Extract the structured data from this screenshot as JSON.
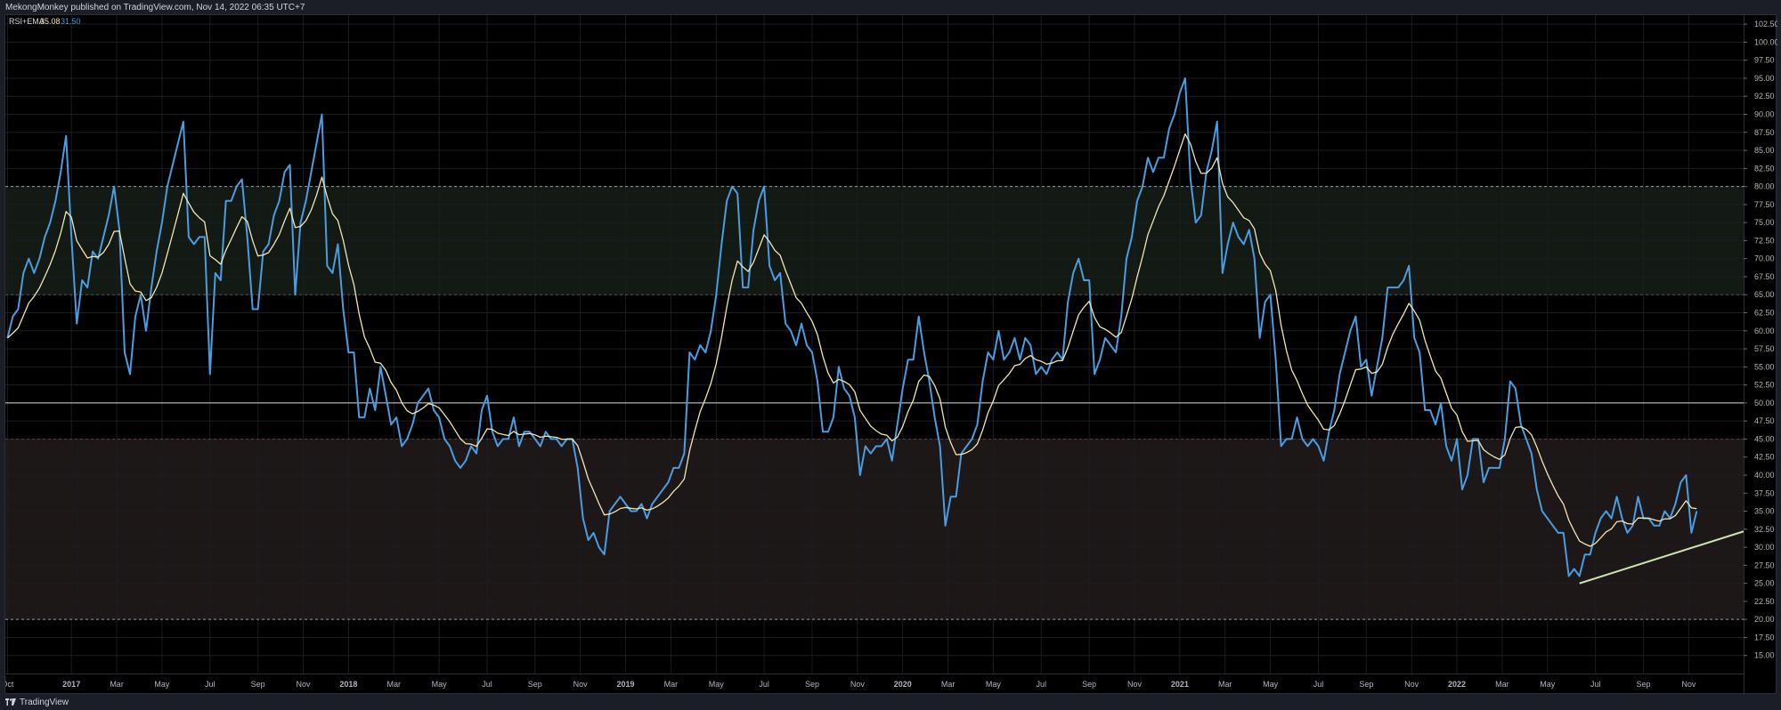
{
  "header": {
    "published": "MekongMonkey published on TradingView.com, Nov 14, 2022 06:35 UTC+7"
  },
  "legend": {
    "name": "RSI+EMA",
    "rsi_value": "35.08",
    "ema_value": "31.50"
  },
  "footer": {
    "brand": "TradingView"
  },
  "colors": {
    "background": "#000000",
    "rsi_line": "#4a9de0",
    "ema_line": "#f2e6b5",
    "overbought_band": "#131a13",
    "oversold_band": "#1d1717",
    "trendline": "#c8e6b0",
    "axis_text": "#b2b5be"
  },
  "chart_data": {
    "type": "line",
    "ylim": [
      12.5,
      103.75
    ],
    "y_ticks": [
      "15.00",
      "17.50",
      "20.00",
      "22.50",
      "25.00",
      "27.50",
      "30.00",
      "32.50",
      "35.00",
      "37.50",
      "40.00",
      "42.50",
      "45.00",
      "47.50",
      "50.00",
      "52.50",
      "55.00",
      "57.50",
      "60.00",
      "62.50",
      "65.00",
      "67.50",
      "70.00",
      "72.50",
      "75.00",
      "77.50",
      "80.00",
      "82.50",
      "85.00",
      "87.50",
      "90.00",
      "92.50",
      "95.00",
      "97.50",
      "100.00",
      "102.50"
    ],
    "x_ticks": [
      {
        "label": "Oct",
        "week": -12
      },
      {
        "label": "2017",
        "week": 0
      },
      {
        "label": "Mar",
        "week": 8.5
      },
      {
        "label": "May",
        "week": 17
      },
      {
        "label": "Jul",
        "week": 26
      },
      {
        "label": "Sep",
        "week": 35
      },
      {
        "label": "Nov",
        "week": 43.5
      },
      {
        "label": "2018",
        "week": 52
      },
      {
        "label": "Mar",
        "week": 60.5
      },
      {
        "label": "May",
        "week": 69
      },
      {
        "label": "Jul",
        "week": 78
      },
      {
        "label": "Sep",
        "week": 87
      },
      {
        "label": "Nov",
        "week": 95.5
      },
      {
        "label": "2019",
        "week": 104
      },
      {
        "label": "Mar",
        "week": 112.5
      },
      {
        "label": "May",
        "week": 121
      },
      {
        "label": "Jul",
        "week": 130
      },
      {
        "label": "Sep",
        "week": 139
      },
      {
        "label": "Nov",
        "week": 147.5
      },
      {
        "label": "2020",
        "week": 156
      },
      {
        "label": "Mar",
        "week": 164.5
      },
      {
        "label": "May",
        "week": 173
      },
      {
        "label": "Jul",
        "week": 182
      },
      {
        "label": "Sep",
        "week": 191
      },
      {
        "label": "Nov",
        "week": 199.5
      },
      {
        "label": "2021",
        "week": 208
      },
      {
        "label": "Mar",
        "week": 216.5
      },
      {
        "label": "May",
        "week": 225
      },
      {
        "label": "Jul",
        "week": 234
      },
      {
        "label": "Sep",
        "week": 243
      },
      {
        "label": "Nov",
        "week": 251.5
      },
      {
        "label": "2022",
        "week": 260
      },
      {
        "label": "Mar",
        "week": 268.5
      },
      {
        "label": "May",
        "week": 277
      },
      {
        "label": "Jul",
        "week": 286
      },
      {
        "label": "Sep",
        "week": 295
      },
      {
        "label": "Nov",
        "week": 303.5
      }
    ],
    "x_range": [
      -12.4,
      313.8
    ],
    "bands": [
      {
        "from": 65,
        "to": 80
      },
      {
        "from": 20,
        "to": 45
      }
    ],
    "levels": [
      {
        "value": 80,
        "style": "dashed"
      },
      {
        "value": 65,
        "style": "dashed"
      },
      {
        "value": 50,
        "style": "solid"
      },
      {
        "value": 45,
        "style": "dashed"
      },
      {
        "value": 20,
        "style": "dashed"
      }
    ],
    "rsi_keypoints": [
      [
        -12,
        59
      ],
      [
        -11,
        62
      ],
      [
        -10,
        63
      ],
      [
        -9,
        68
      ],
      [
        -8,
        70
      ],
      [
        -7,
        68
      ],
      [
        -6,
        70
      ],
      [
        -5,
        73
      ],
      [
        -4,
        75
      ],
      [
        -3,
        78
      ],
      [
        -2,
        82
      ],
      [
        -1,
        87
      ],
      [
        0,
        73
      ],
      [
        1,
        61
      ],
      [
        2,
        67
      ],
      [
        3,
        66
      ],
      [
        4,
        71
      ],
      [
        5,
        70
      ],
      [
        6,
        73
      ],
      [
        7,
        76
      ],
      [
        8,
        80
      ],
      [
        9,
        74
      ],
      [
        10,
        57
      ],
      [
        11,
        54
      ],
      [
        12,
        62
      ],
      [
        13,
        65
      ],
      [
        14,
        60
      ],
      [
        15,
        66
      ],
      [
        16,
        71
      ],
      [
        17,
        75
      ],
      [
        18,
        80
      ],
      [
        19,
        83
      ],
      [
        20,
        86
      ],
      [
        21,
        89
      ],
      [
        22,
        73
      ],
      [
        23,
        72
      ],
      [
        24,
        73
      ],
      [
        25,
        73
      ],
      [
        26,
        54
      ],
      [
        27,
        68
      ],
      [
        28,
        67
      ],
      [
        29,
        78
      ],
      [
        30,
        78
      ],
      [
        31,
        80
      ],
      [
        32,
        81
      ],
      [
        33,
        73
      ],
      [
        34,
        63
      ],
      [
        35,
        63
      ],
      [
        36,
        71
      ],
      [
        37,
        72
      ],
      [
        38,
        76
      ],
      [
        39,
        78
      ],
      [
        40,
        82
      ],
      [
        41,
        83
      ],
      [
        42,
        65
      ],
      [
        43,
        75
      ],
      [
        44,
        78
      ],
      [
        45,
        82
      ],
      [
        46,
        86
      ],
      [
        47,
        90
      ],
      [
        48,
        69
      ],
      [
        49,
        68
      ],
      [
        50,
        72
      ],
      [
        51,
        63
      ],
      [
        52,
        57
      ],
      [
        53,
        57
      ],
      [
        54,
        48
      ],
      [
        55,
        48
      ],
      [
        56,
        52
      ],
      [
        57,
        49
      ],
      [
        58,
        55
      ],
      [
        59,
        51
      ],
      [
        60,
        47
      ],
      [
        61,
        48
      ],
      [
        62,
        44
      ],
      [
        63,
        45
      ],
      [
        64,
        47
      ],
      [
        65,
        50
      ],
      [
        66,
        51
      ],
      [
        67,
        52
      ],
      [
        68,
        49
      ],
      [
        69,
        48
      ],
      [
        70,
        45
      ],
      [
        71,
        44
      ],
      [
        72,
        42
      ],
      [
        73,
        41
      ],
      [
        74,
        42
      ],
      [
        75,
        44
      ],
      [
        76,
        43
      ],
      [
        77,
        49
      ],
      [
        78,
        51
      ],
      [
        79,
        46
      ],
      [
        80,
        44
      ],
      [
        81,
        45
      ],
      [
        82,
        45
      ],
      [
        83,
        48
      ],
      [
        84,
        44
      ],
      [
        85,
        46
      ],
      [
        86,
        46
      ],
      [
        87,
        45
      ],
      [
        88,
        44
      ],
      [
        89,
        46
      ],
      [
        90,
        45
      ],
      [
        91,
        45
      ],
      [
        92,
        44
      ],
      [
        93,
        45
      ],
      [
        94,
        45
      ],
      [
        95,
        41
      ],
      [
        96,
        34
      ],
      [
        97,
        31
      ],
      [
        98,
        32
      ],
      [
        99,
        30
      ],
      [
        100,
        29
      ],
      [
        101,
        35
      ],
      [
        102,
        36
      ],
      [
        103,
        37
      ],
      [
        104,
        36
      ],
      [
        105,
        35
      ],
      [
        106,
        35
      ],
      [
        107,
        36
      ],
      [
        108,
        34
      ],
      [
        109,
        36
      ],
      [
        110,
        37
      ],
      [
        111,
        38
      ],
      [
        112,
        39
      ],
      [
        113,
        41
      ],
      [
        114,
        41
      ],
      [
        115,
        43
      ],
      [
        116,
        57
      ],
      [
        117,
        56
      ],
      [
        118,
        58
      ],
      [
        119,
        57
      ],
      [
        120,
        60
      ],
      [
        121,
        65
      ],
      [
        122,
        72
      ],
      [
        123,
        78
      ],
      [
        124,
        80
      ],
      [
        125,
        79
      ],
      [
        126,
        66
      ],
      [
        127,
        66
      ],
      [
        128,
        74
      ],
      [
        129,
        78
      ],
      [
        130,
        80
      ],
      [
        131,
        69
      ],
      [
        132,
        67
      ],
      [
        133,
        68
      ],
      [
        134,
        61
      ],
      [
        135,
        60
      ],
      [
        136,
        58
      ],
      [
        137,
        61
      ],
      [
        138,
        58
      ],
      [
        139,
        57
      ],
      [
        140,
        53
      ],
      [
        141,
        46
      ],
      [
        142,
        46
      ],
      [
        143,
        48
      ],
      [
        144,
        55
      ],
      [
        145,
        52
      ],
      [
        146,
        51
      ],
      [
        147,
        48
      ],
      [
        148,
        40
      ],
      [
        149,
        44
      ],
      [
        150,
        43
      ],
      [
        151,
        44
      ],
      [
        152,
        44
      ],
      [
        153,
        45
      ],
      [
        154,
        42
      ],
      [
        155,
        47
      ],
      [
        156,
        52
      ],
      [
        157,
        56
      ],
      [
        158,
        56
      ],
      [
        159,
        62
      ],
      [
        160,
        57
      ],
      [
        161,
        53
      ],
      [
        162,
        48
      ],
      [
        163,
        44
      ],
      [
        164,
        33
      ],
      [
        165,
        37
      ],
      [
        166,
        37
      ],
      [
        167,
        43
      ],
      [
        168,
        44
      ],
      [
        169,
        45
      ],
      [
        170,
        47
      ],
      [
        171,
        53
      ],
      [
        172,
        57
      ],
      [
        173,
        56
      ],
      [
        174,
        60
      ],
      [
        175,
        56
      ],
      [
        176,
        57
      ],
      [
        177,
        59
      ],
      [
        178,
        56
      ],
      [
        179,
        59
      ],
      [
        180,
        58
      ],
      [
        181,
        54
      ],
      [
        182,
        55
      ],
      [
        183,
        54
      ],
      [
        184,
        56
      ],
      [
        185,
        57
      ],
      [
        186,
        56
      ],
      [
        187,
        64
      ],
      [
        188,
        68
      ],
      [
        189,
        70
      ],
      [
        190,
        67
      ],
      [
        191,
        67
      ],
      [
        192,
        54
      ],
      [
        193,
        56
      ],
      [
        194,
        59
      ],
      [
        195,
        58
      ],
      [
        196,
        57
      ],
      [
        197,
        62
      ],
      [
        198,
        70
      ],
      [
        199,
        73
      ],
      [
        200,
        78
      ],
      [
        201,
        80
      ],
      [
        202,
        84
      ],
      [
        203,
        82
      ],
      [
        204,
        84
      ],
      [
        205,
        84
      ],
      [
        206,
        88
      ],
      [
        207,
        90
      ],
      [
        208,
        93
      ],
      [
        209,
        95
      ],
      [
        210,
        81
      ],
      [
        211,
        75
      ],
      [
        212,
        76
      ],
      [
        213,
        82
      ],
      [
        214,
        85
      ],
      [
        215,
        89
      ],
      [
        216,
        68
      ],
      [
        217,
        72
      ],
      [
        218,
        75
      ],
      [
        219,
        73
      ],
      [
        220,
        72
      ],
      [
        221,
        74
      ],
      [
        222,
        70
      ],
      [
        223,
        59
      ],
      [
        224,
        64
      ],
      [
        225,
        65
      ],
      [
        226,
        56
      ],
      [
        227,
        44
      ],
      [
        228,
        45
      ],
      [
        229,
        45
      ],
      [
        230,
        48
      ],
      [
        231,
        45
      ],
      [
        232,
        44
      ],
      [
        233,
        45
      ],
      [
        234,
        44
      ],
      [
        235,
        42
      ],
      [
        236,
        46
      ],
      [
        237,
        49
      ],
      [
        238,
        54
      ],
      [
        239,
        57
      ],
      [
        240,
        60
      ],
      [
        241,
        62
      ],
      [
        242,
        55
      ],
      [
        243,
        56
      ],
      [
        244,
        51
      ],
      [
        245,
        55
      ],
      [
        246,
        59
      ],
      [
        247,
        66
      ],
      [
        248,
        66
      ],
      [
        249,
        66
      ],
      [
        250,
        67
      ],
      [
        251,
        69
      ],
      [
        252,
        59
      ],
      [
        253,
        57
      ],
      [
        254,
        49
      ],
      [
        255,
        49
      ],
      [
        256,
        47
      ],
      [
        257,
        50
      ],
      [
        258,
        44
      ],
      [
        259,
        42
      ],
      [
        260,
        45
      ],
      [
        261,
        38
      ],
      [
        262,
        40
      ],
      [
        263,
        45
      ],
      [
        264,
        45
      ],
      [
        265,
        39
      ],
      [
        266,
        41
      ],
      [
        267,
        41
      ],
      [
        268,
        41
      ],
      [
        269,
        45
      ],
      [
        270,
        53
      ],
      [
        271,
        52
      ],
      [
        272,
        47
      ],
      [
        273,
        45
      ],
      [
        274,
        43
      ],
      [
        275,
        38
      ],
      [
        276,
        35
      ],
      [
        277,
        34
      ],
      [
        278,
        33
      ],
      [
        279,
        32
      ],
      [
        280,
        32
      ],
      [
        281,
        26
      ],
      [
        282,
        27
      ],
      [
        283,
        26
      ],
      [
        284,
        29
      ],
      [
        285,
        29
      ],
      [
        286,
        32
      ],
      [
        287,
        34
      ],
      [
        288,
        35
      ],
      [
        289,
        34
      ],
      [
        290,
        37
      ],
      [
        291,
        34
      ],
      [
        292,
        32
      ],
      [
        293,
        33
      ],
      [
        294,
        37
      ],
      [
        295,
        34
      ],
      [
        296,
        34
      ],
      [
        297,
        33
      ],
      [
        298,
        33
      ],
      [
        299,
        35
      ],
      [
        300,
        34
      ],
      [
        301,
        36
      ],
      [
        302,
        39
      ],
      [
        303,
        40
      ],
      [
        304,
        32
      ],
      [
        305,
        35
      ]
    ],
    "ema_period": 8,
    "trendline": {
      "from": [
        283,
        25.0
      ],
      "to": [
        313.8,
        32.2
      ]
    },
    "series": [
      {
        "legend_label": "35.08"
      },
      {
        "legend_label": "31.50"
      }
    ]
  }
}
